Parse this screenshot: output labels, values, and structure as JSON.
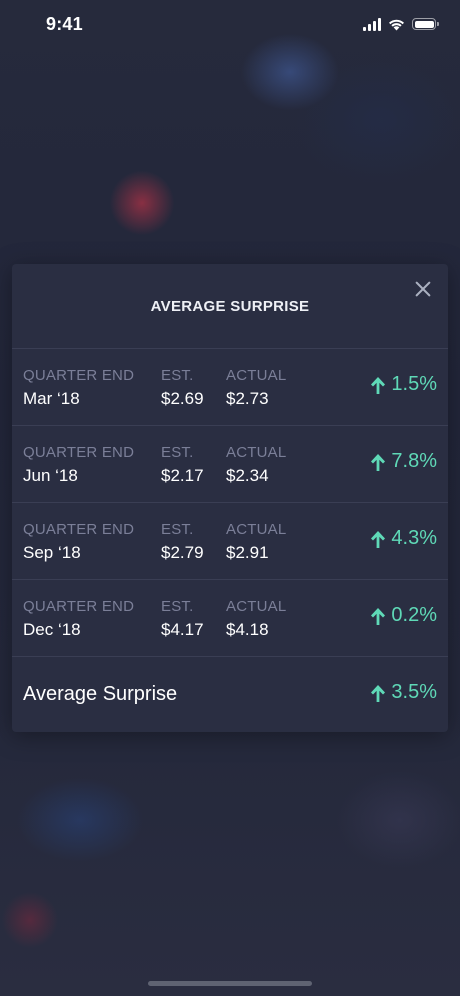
{
  "status_bar": {
    "time": "9:41"
  },
  "sheet": {
    "title": "AVERAGE SURPRISE",
    "labels": {
      "quarter_end": "QUARTER END",
      "est": "EST.",
      "actual": "ACTUAL"
    },
    "rows": [
      {
        "quarter": "Mar ‘18",
        "est": "$2.69",
        "actual": "$2.73",
        "surprise": "1.5%"
      },
      {
        "quarter": "Jun ‘18",
        "est": "$2.17",
        "actual": "$2.34",
        "surprise": "7.8%"
      },
      {
        "quarter": "Sep ‘18",
        "est": "$2.79",
        "actual": "$2.91",
        "surprise": "4.3%"
      },
      {
        "quarter": "Dec ‘18",
        "est": "$4.17",
        "actual": "$4.18",
        "surprise": "0.2%"
      }
    ],
    "average": {
      "label": "Average Surprise",
      "value": "3.5%"
    }
  },
  "colors": {
    "positive": "#5fd9b7",
    "label": "#7b7f98",
    "sheet_bg": "#2a2e42"
  },
  "icons": {
    "close": "close-icon",
    "up": "arrow-up-icon"
  }
}
